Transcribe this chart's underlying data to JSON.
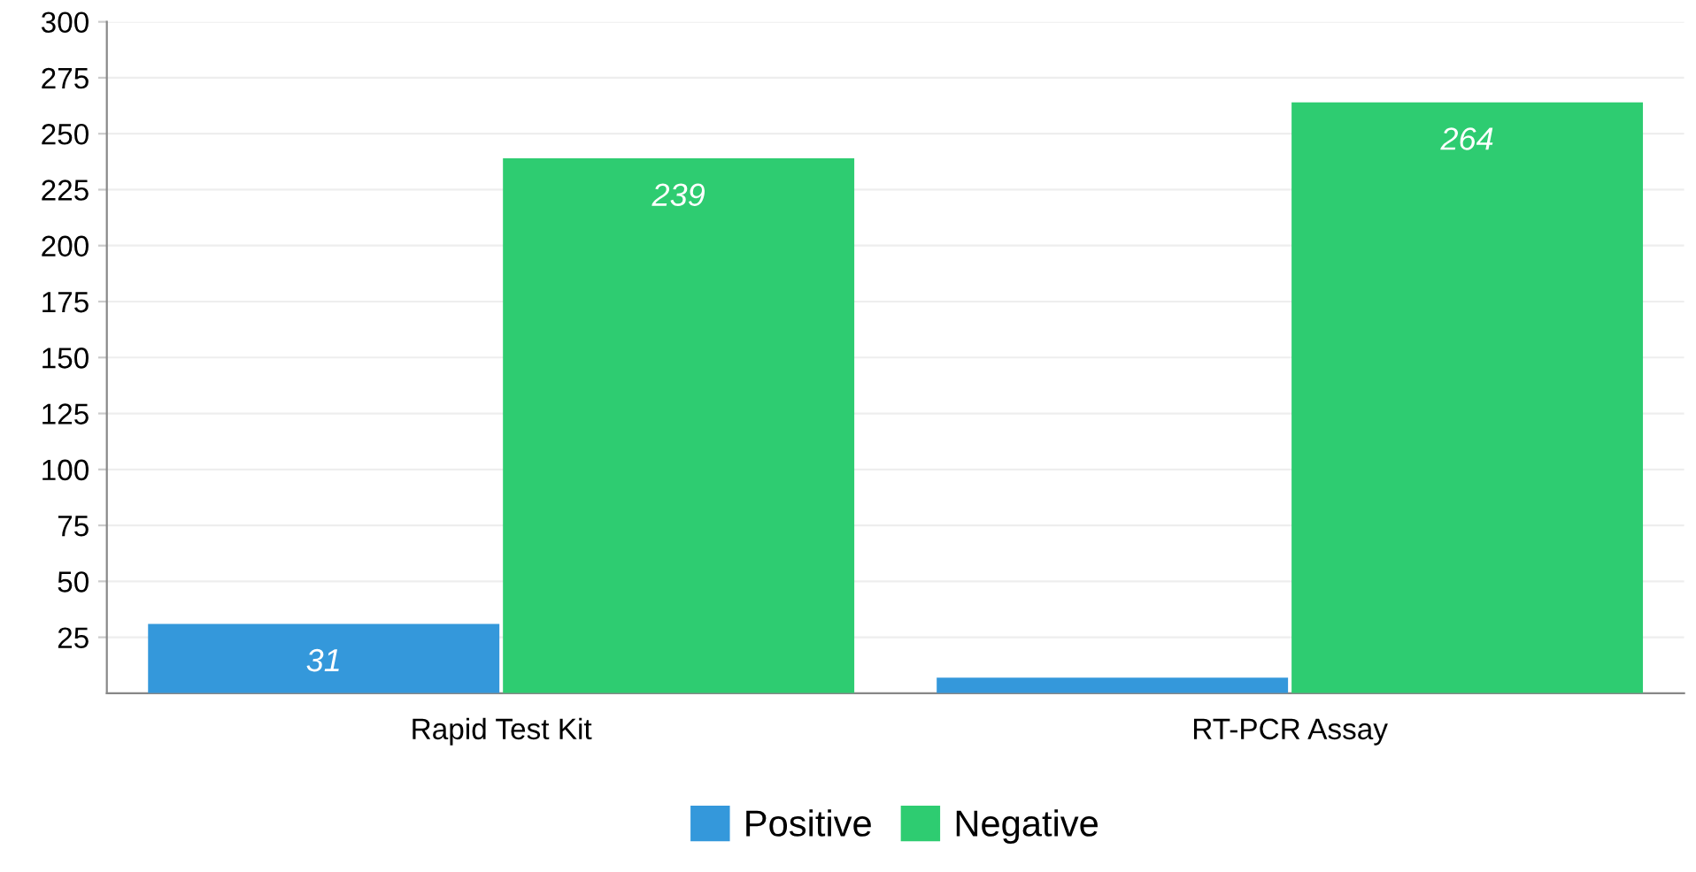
{
  "chart_data": {
    "type": "bar",
    "categories": [
      "Rapid Test Kit",
      "RT-PCR Assay"
    ],
    "series": [
      {
        "name": "Positive",
        "color": "#3498db",
        "values": [
          31,
          7
        ],
        "value_labels": [
          "31",
          null
        ]
      },
      {
        "name": "Negative",
        "color": "#2ecc71",
        "values": [
          239,
          264
        ],
        "value_labels": [
          "239",
          "264"
        ]
      }
    ],
    "ylim": [
      0,
      300
    ],
    "yticks": [
      25,
      50,
      75,
      100,
      125,
      150,
      175,
      200,
      225,
      250,
      275,
      300
    ],
    "grid": "y",
    "legend": "bottom"
  }
}
